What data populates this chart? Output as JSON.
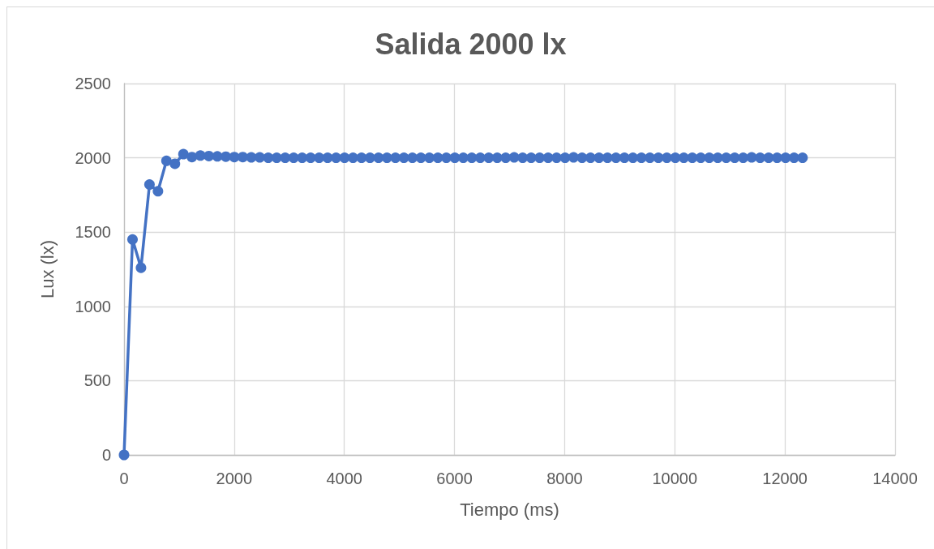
{
  "chart_data": {
    "type": "line",
    "title": "Salida 2000 lx",
    "xlabel": "Tiempo (ms)",
    "ylabel": "Lux (lx)",
    "x": [
      0,
      154,
      308,
      462,
      616,
      770,
      924,
      1078,
      1232,
      1386,
      1540,
      1694,
      1848,
      2002,
      2156,
      2310,
      2464,
      2618,
      2772,
      2926,
      3080,
      3234,
      3388,
      3542,
      3696,
      3850,
      4004,
      4158,
      4312,
      4466,
      4620,
      4774,
      4928,
      5082,
      5236,
      5390,
      5544,
      5698,
      5852,
      6006,
      6160,
      6314,
      6468,
      6622,
      6776,
      6930,
      7084,
      7238,
      7392,
      7546,
      7700,
      7854,
      8008,
      8162,
      8316,
      8470,
      8624,
      8778,
      8932,
      9086,
      9240,
      9394,
      9548,
      9702,
      9856,
      10010,
      10164,
      10318,
      10472,
      10626,
      10780,
      10934,
      11088,
      11242,
      11396,
      11550,
      11704,
      11858,
      12012,
      12166,
      12320
    ],
    "values": [
      0,
      1450,
      1260,
      1820,
      1775,
      1980,
      1960,
      2025,
      2005,
      2015,
      2012,
      2010,
      2008,
      2005,
      2005,
      2003,
      2003,
      2000,
      2000,
      2000,
      2000,
      2000,
      2000,
      2000,
      2000,
      2000,
      2000,
      2000,
      2000,
      2000,
      2000,
      2000,
      2000,
      2000,
      2000,
      2000,
      2000,
      2000,
      2000,
      2000,
      2000,
      2000,
      2000,
      2000,
      2000,
      2000,
      2003,
      2000,
      2000,
      2000,
      2000,
      2000,
      2000,
      2003,
      2000,
      2000,
      2000,
      2000,
      2000,
      2000,
      2000,
      2000,
      2000,
      2000,
      2000,
      2000,
      2000,
      2000,
      2000,
      2000,
      2000,
      2000,
      2000,
      2000,
      2003,
      2000,
      2000,
      2000,
      2000,
      2000,
      2000
    ],
    "color": "#4472c4",
    "xlim": [
      0,
      14000
    ],
    "ylim": [
      0,
      2500
    ],
    "xticks": [
      0,
      2000,
      4000,
      6000,
      8000,
      10000,
      12000,
      14000
    ],
    "yticks": [
      0,
      500,
      1000,
      1500,
      2000,
      2500
    ],
    "grid": true,
    "marker": "circle",
    "line_style": "solid"
  }
}
